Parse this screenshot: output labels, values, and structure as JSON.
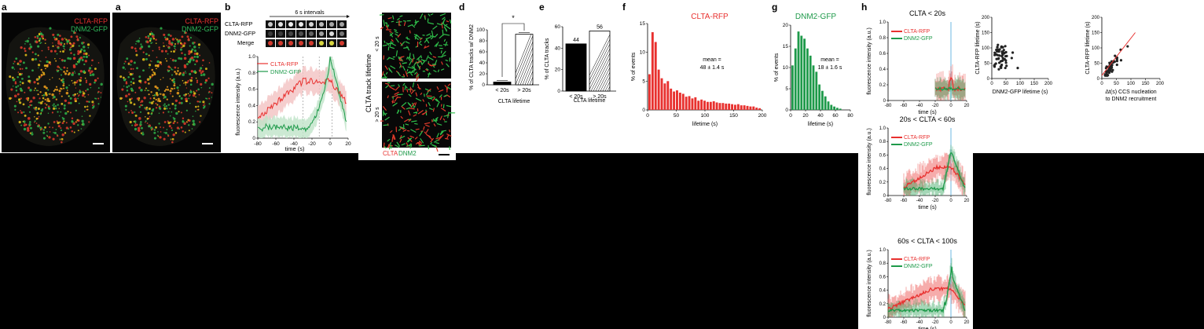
{
  "panels": {
    "a1": {
      "letter": "a",
      "red": "CLTA-RFP",
      "green": "DNM2-GFP"
    },
    "a2": {
      "letter": "a",
      "red": "CLTA-RFP",
      "green": "DNM2-GFP"
    },
    "b": {
      "letter": "b",
      "interval": "6 s intervals",
      "rows": [
        "CLTA-RFP",
        "DNM2-GFP",
        "Merge"
      ],
      "legend": [
        "CLTA-RFP",
        "DNM2-GFP"
      ],
      "ylabel": "fluorescence intensity (a.u.)",
      "xlabel": "time (s)",
      "xticks": [
        "-80",
        "-60",
        "-40",
        "-20",
        "0",
        "20"
      ],
      "yticks": [
        "0",
        "0.2",
        "0.4",
        "0.6",
        "0.8",
        "1.0"
      ]
    },
    "c": {
      "letter": "c",
      "title": "CLTA  track lifetime",
      "top": "< 20 s",
      "bottom": "> 20 s",
      "red": "CLTA",
      "green": "DNM2"
    },
    "d": {
      "letter": "d",
      "ylabel": "% of CLTA tracks w/ DNM2",
      "xlabel": "CLTA lifetime",
      "cats": [
        "< 20s",
        "> 20s"
      ],
      "yticks": [
        "0",
        "20",
        "40",
        "60",
        "80",
        "100"
      ],
      "star": "*"
    },
    "e": {
      "letter": "e",
      "ylabel": "% of CLTA tracks",
      "xlabel": "CLTA lifetime",
      "cats": [
        "< 20s",
        "> 20s"
      ],
      "vals": [
        "44",
        "56"
      ],
      "yticks": [
        "0",
        "20",
        "40",
        "60"
      ]
    },
    "f": {
      "letter": "f",
      "title": "CLTA-RFP",
      "mean1": "mean =",
      "mean2": "48 ± 1.4 s",
      "ylabel": "% of events",
      "xlabel": "lifetime (s)",
      "xticks": [
        "0",
        "50",
        "100",
        "150",
        "200"
      ],
      "yticks": [
        "0",
        "5",
        "10",
        "15"
      ]
    },
    "g": {
      "letter": "g",
      "title": "DNM2-GFP",
      "mean1": "mean =",
      "mean2": "18 ± 1.6 s",
      "ylabel": "% of events",
      "xlabel": "lifetime (s)",
      "xticks": [
        "0",
        "20",
        "40",
        "60",
        "80"
      ],
      "yticks": [
        "0",
        "5",
        "10",
        "15",
        "20"
      ]
    },
    "h": {
      "letter": "h",
      "titles": [
        "CLTA < 20s",
        "20s < CLTA < 60s",
        "60s < CLTA < 100s"
      ],
      "legend": [
        "CLTA-RFP",
        "DNM2-GFP"
      ],
      "ylabel": "fluorescence intensity (a.u.)",
      "xlabel": "time (s)",
      "xticks": [
        "-80",
        "-60",
        "-40",
        "-20",
        "0",
        "20"
      ],
      "yticks": [
        "0",
        "0.2",
        "0.4",
        "0.6",
        "0.8",
        "1.0"
      ]
    },
    "i": {
      "letter": "i",
      "ylabel1": "CLTA-RFP lifetime (s)",
      "xlabel1": "DNM2-GFP lifetime (s)",
      "ylabel2": "CLTA-RFP lifetime (s)",
      "xlabel2a": "Δt(s) CCS nucleation",
      "xlabel2b": "to DNM2 recruitment",
      "ticks": [
        "0",
        "50",
        "100",
        "150",
        "200"
      ]
    }
  },
  "colors": {
    "red": "#e8312f",
    "green": "#1e9a4a",
    "pinkband": "#f3c2c2",
    "greenband": "#bfe3c8"
  },
  "chart_data": [
    {
      "panel": "d",
      "type": "bar",
      "categories": [
        "< 20s",
        "> 20s"
      ],
      "values": [
        5,
        92
      ],
      "ylim": [
        0,
        100
      ],
      "ylabel": "% of CLTA tracks w/ DNM2",
      "xlabel": "CLTA lifetime"
    },
    {
      "panel": "e",
      "type": "bar",
      "categories": [
        "< 20s",
        "> 20s"
      ],
      "values": [
        44,
        56
      ],
      "ylim": [
        0,
        60
      ],
      "ylabel": "% of CLTA tracks",
      "xlabel": "CLTA lifetime"
    },
    {
      "panel": "f",
      "type": "bar",
      "xlabel": "lifetime (s)",
      "ylabel": "% of events",
      "ylim": [
        0,
        15
      ],
      "xlim": [
        0,
        200
      ],
      "values": [
        6.2,
        13.5,
        11.8,
        7.0,
        5.5,
        4.6,
        5.0,
        3.7,
        3.2,
        3.4,
        3.0,
        2.8,
        2.3,
        2.4,
        2.0,
        2.2,
        1.6,
        1.8,
        1.6,
        1.4,
        1.4,
        1.5,
        1.3,
        1.2,
        1.2,
        1.1,
        1.1,
        1.0,
        0.9,
        1.0,
        0.8,
        0.8,
        0.7,
        0.6,
        0.6,
        0.4,
        0.3
      ]
    },
    {
      "panel": "g",
      "type": "bar",
      "xlabel": "lifetime (s)",
      "ylabel": "% of events",
      "ylim": [
        0,
        20
      ],
      "xlim": [
        0,
        80
      ],
      "values": [
        10.5,
        14.5,
        18.5,
        17.5,
        16.8,
        14.5,
        12.8,
        10.5,
        9.0,
        6.0,
        4.5,
        3.2,
        2.0,
        1.2,
        0.8,
        0.5,
        0.3
      ]
    }
  ]
}
